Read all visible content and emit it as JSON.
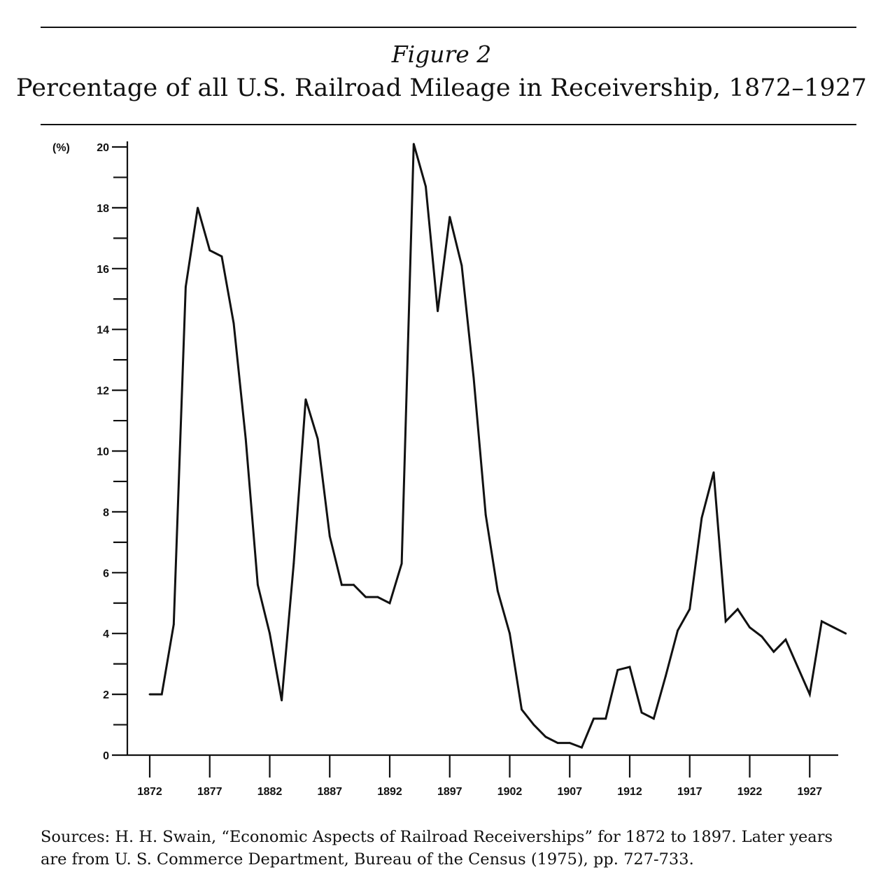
{
  "figure": {
    "label": "Figure 2",
    "title": "Percentage of all U.S. Railroad Mileage in Receivership, 1872–1927",
    "sources": "Sources: H. H. Swain, “Economic Aspects of Railroad Receiverships” for 1872 to 1897. Later years are from U. S. Commerce Department, Bureau of the Census (1975), pp. 727-733."
  },
  "chart_data": {
    "type": "line",
    "title": "Percentage of all U.S. Railroad Mileage in Receivership, 1872–1927",
    "xlabel": "",
    "ylabel": "(%)",
    "ylim": [
      0,
      20
    ],
    "xlim": [
      1871,
      1930
    ],
    "yticks": [
      0,
      2,
      4,
      6,
      8,
      10,
      12,
      14,
      16,
      18,
      20
    ],
    "ytick_labels": [
      "0",
      "2",
      "4",
      "6",
      "8",
      "10",
      "12",
      "14",
      "16",
      "18",
      "20"
    ],
    "xticks": [
      1872,
      1877,
      1882,
      1887,
      1892,
      1897,
      1902,
      1907,
      1912,
      1917,
      1922,
      1927
    ],
    "xtick_labels": [
      "1872",
      "1877",
      "1882",
      "1887",
      "1892",
      "1897",
      "1902",
      "1907",
      "1912",
      "1917",
      "1922",
      "1927"
    ],
    "grid": false,
    "line_color": "#111111",
    "series": [
      {
        "x": [
          1872,
          1873,
          1874,
          1875,
          1876,
          1877,
          1878,
          1879,
          1880,
          1881,
          1882,
          1883,
          1884,
          1885,
          1886,
          1887,
          1888,
          1889,
          1890,
          1891,
          1892,
          1893,
          1894,
          1895,
          1896,
          1897,
          1898,
          1899,
          1900,
          1901,
          1902,
          1903,
          1904,
          1905,
          1906,
          1907,
          1908,
          1909,
          1910,
          1911,
          1912,
          1913,
          1914,
          1915,
          1916,
          1917,
          1918,
          1919,
          1920,
          1921,
          1922,
          1923,
          1924,
          1925,
          1926,
          1927,
          1928,
          1929,
          1930
        ],
        "y": [
          2.0,
          2.0,
          4.3,
          15.4,
          18.0,
          16.6,
          16.4,
          14.2,
          10.4,
          5.6,
          4.0,
          1.8,
          6.3,
          11.7,
          10.4,
          7.2,
          5.6,
          5.6,
          5.2,
          5.2,
          5.0,
          6.3,
          20.1,
          18.7,
          14.6,
          17.7,
          16.1,
          12.4,
          7.9,
          5.4,
          4.0,
          1.5,
          1.0,
          0.6,
          0.4,
          0.4,
          0.25,
          1.2,
          1.2,
          2.8,
          2.9,
          1.4,
          1.2,
          2.6,
          4.1,
          4.8,
          7.8,
          9.3,
          4.4,
          4.8,
          4.2,
          3.9,
          3.4,
          3.8,
          2.9,
          2.0,
          4.4,
          4.2,
          4.0
        ]
      }
    ]
  }
}
